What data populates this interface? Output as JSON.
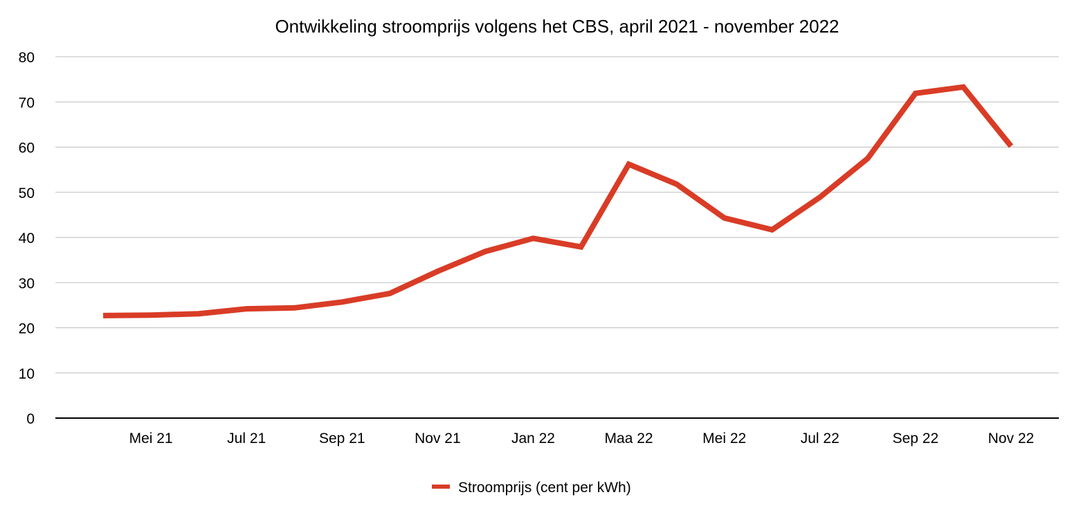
{
  "chart_data": {
    "type": "line",
    "title": "Ontwikkeling stroomprijs volgens het CBS, april 2021 - november 2022",
    "xlabel": "",
    "ylabel": "",
    "x_tick_labels": [
      "",
      "Mei 21",
      "",
      "Jul 21",
      "",
      "Sep 21",
      "",
      "Nov 21",
      "",
      "Jan 22",
      "",
      "Maa 22",
      "",
      "Mei 22",
      "",
      "Jul 22",
      "",
      "Sep 22",
      "",
      "Nov 22"
    ],
    "yticks": [
      0,
      10,
      20,
      30,
      40,
      50,
      60,
      70,
      80
    ],
    "ylim": [
      0,
      80
    ],
    "grid": true,
    "legend_position": "bottom",
    "series": [
      {
        "name": "Stroomprijs (cent per kWh)",
        "color": "#d93c26",
        "values": [
          22.7,
          22.8,
          23.1,
          24.2,
          24.4,
          25.7,
          27.6,
          32.5,
          36.9,
          39.8,
          37.9,
          56.2,
          51.8,
          44.3,
          41.7,
          48.9,
          57.5,
          71.9,
          73.3,
          60.2
        ]
      }
    ]
  }
}
